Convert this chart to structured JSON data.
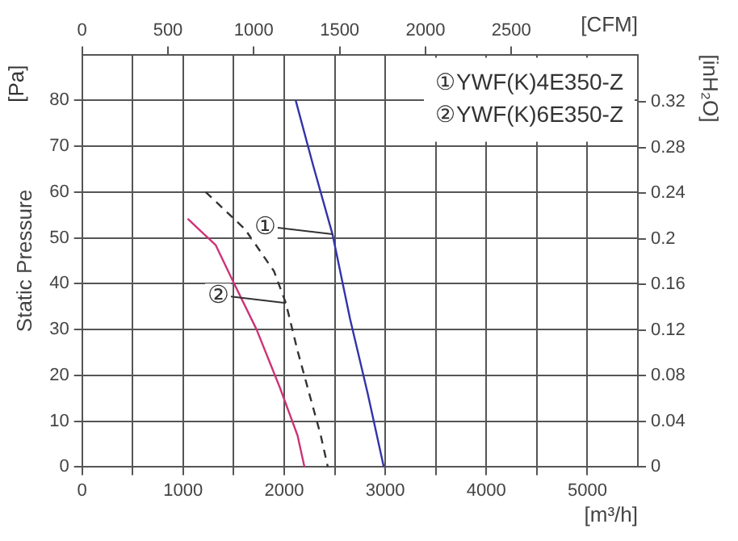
{
  "chart_data": {
    "type": "line",
    "ylabel": "Static Pressure",
    "xlabel": "[m³/h]",
    "x2label": "[CFM]",
    "y2label": "[inH₂O]",
    "xlim": [
      0,
      5500
    ],
    "xticks": [
      0,
      {
        "value": 500,
        "label": null
      },
      1000,
      {
        "value": 1500,
        "label": null
      },
      2000,
      {
        "value": 2500,
        "label": null
      },
      3000,
      {
        "value": 3500,
        "label": null
      },
      4000,
      {
        "value": 4500,
        "label": null
      },
      5000
    ],
    "x2lim": [
      0,
      3237
    ],
    "x2ticks": [
      0,
      500,
      1000,
      1500,
      2000,
      2500
    ],
    "ylim": [
      0,
      90
    ],
    "yticks": [
      0,
      10,
      20,
      30,
      40,
      50,
      60,
      70,
      80
    ],
    "y2lim": [
      0,
      0.3613
    ],
    "y2ticks": [
      0,
      0.04,
      0.08,
      0.12,
      0.16,
      0.2,
      0.24,
      0.28,
      0.32
    ],
    "grid": true,
    "marker": "none",
    "series": [
      {
        "color": "#3333aa",
        "line_style": "solid",
        "x": [
          2114,
          2288,
          2478,
          2652,
          2825,
          2986
        ],
        "values": [
          80,
          65.7,
          50.8,
          32.3,
          16.2,
          0
        ]
      },
      {
        "color": "#333333",
        "line_style": "dashed",
        "x": [
          1223,
          1612,
          1900,
          2016,
          2132,
          2246,
          2362,
          2432
        ],
        "values": [
          60,
          51.9,
          42.7,
          35.8,
          25.4,
          16.2,
          6.9,
          0
        ]
      },
      {
        "color": "#cc3377",
        "line_style": "solid",
        "x": [
          1045,
          1323,
          1496,
          1727,
          1958,
          2132,
          2201
        ],
        "values": [
          54.2,
          48.4,
          40.4,
          30,
          17.3,
          6.9,
          0
        ]
      }
    ],
    "annotations": [
      "[Pa]",
      "①YWF(K)4E350-Z",
      "②YWF(K)6E350-Z",
      {
        "text": "①",
        "x": 2478,
        "y": 50.8
      },
      {
        "text": "②",
        "x": 2016,
        "y": 35.8
      }
    ]
  }
}
